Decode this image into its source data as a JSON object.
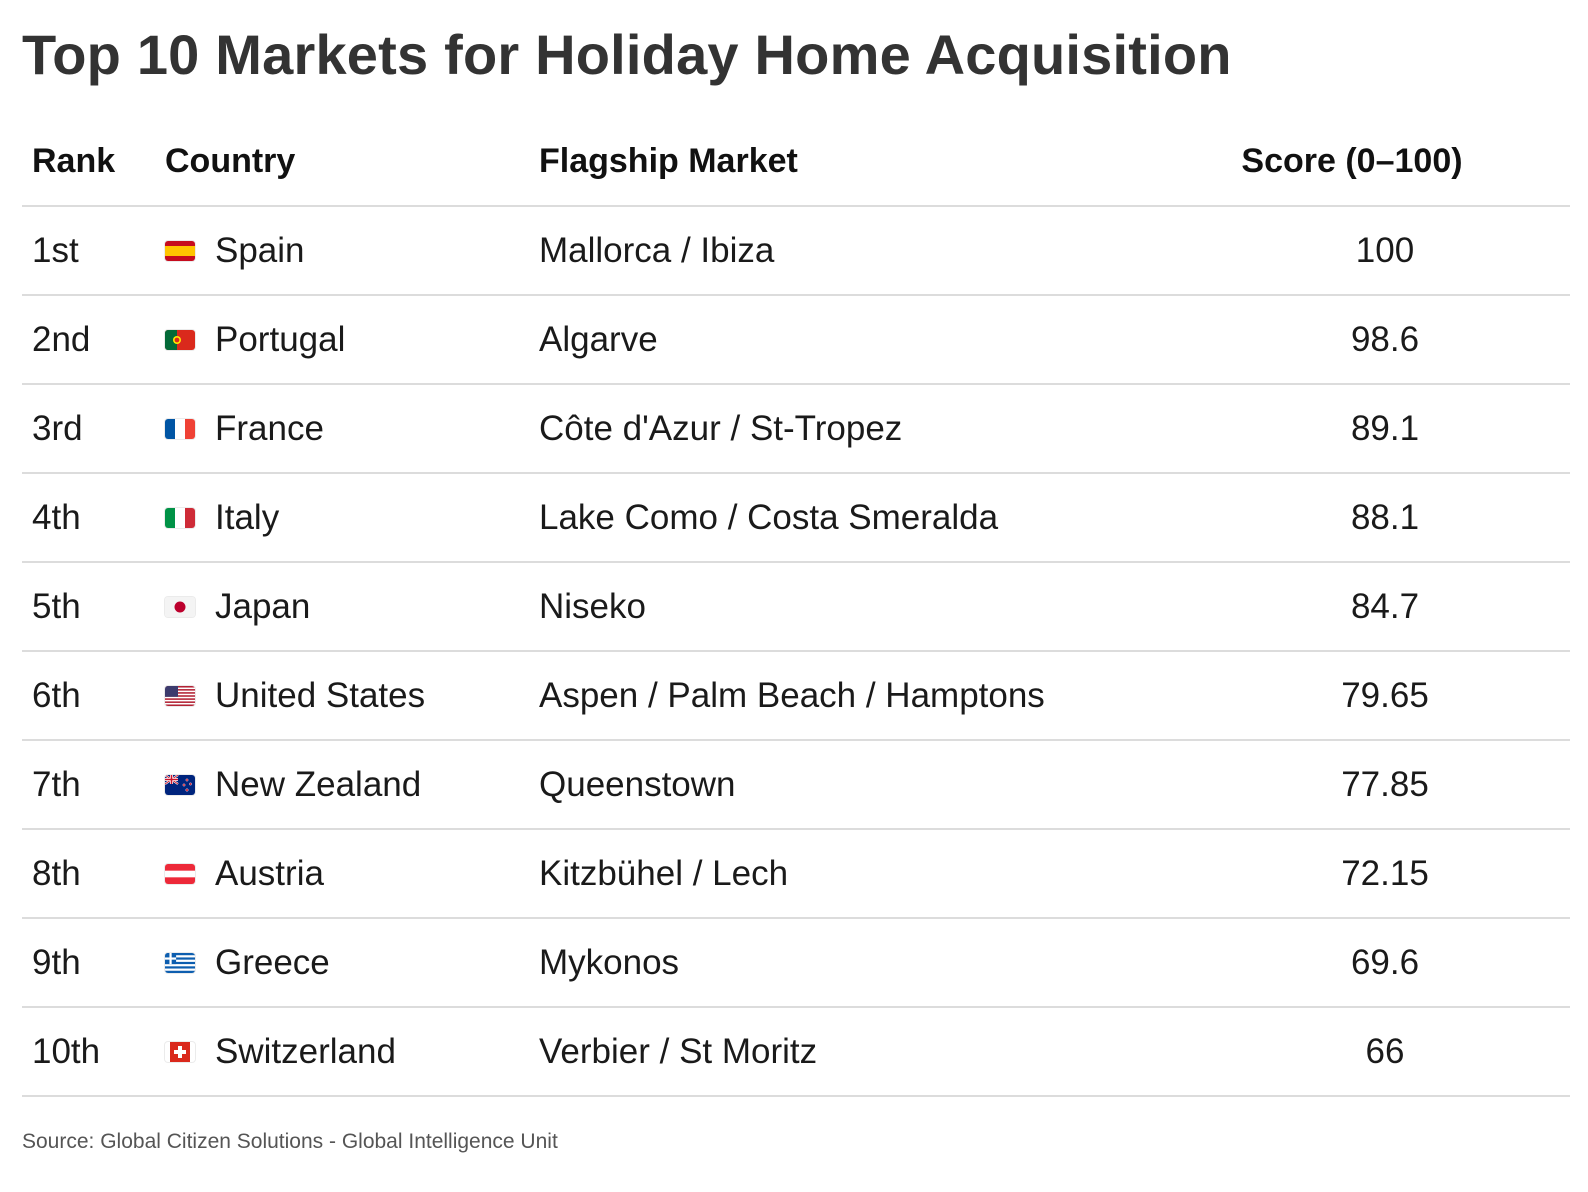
{
  "chart_data": {
    "type": "table",
    "title": "Top 10 Markets for Holiday Home Acquisition",
    "columns": [
      "Rank",
      "Country",
      "Flagship Market",
      "Score (0–100)"
    ],
    "rows": [
      {
        "rank": "1st",
        "country": "Spain",
        "flag": "spain-flag-icon",
        "market": "Mallorca / Ibiza",
        "score": "100"
      },
      {
        "rank": "2nd",
        "country": "Portugal",
        "flag": "portugal-flag-icon",
        "market": "Algarve",
        "score": "98.6"
      },
      {
        "rank": "3rd",
        "country": "France",
        "flag": "france-flag-icon",
        "market": "Côte d'Azur / St-Tropez",
        "score": "89.1"
      },
      {
        "rank": "4th",
        "country": "Italy",
        "flag": "italy-flag-icon",
        "market": "Lake Como / Costa Smeralda",
        "score": "88.1"
      },
      {
        "rank": "5th",
        "country": "Japan",
        "flag": "japan-flag-icon",
        "market": "Niseko",
        "score": "84.7"
      },
      {
        "rank": "6th",
        "country": "United States",
        "flag": "united-states-flag-icon",
        "market": "Aspen / Palm Beach / Hamptons",
        "score": "79.65"
      },
      {
        "rank": "7th",
        "country": "New Zealand",
        "flag": "new-zealand-flag-icon",
        "market": "Queenstown",
        "score": "77.85"
      },
      {
        "rank": "8th",
        "country": "Austria",
        "flag": "austria-flag-icon",
        "market": "Kitzbühel / Lech",
        "score": "72.15"
      },
      {
        "rank": "9th",
        "country": "Greece",
        "flag": "greece-flag-icon",
        "market": "Mykonos",
        "score": "69.6"
      },
      {
        "rank": "10th",
        "country": "Switzerland",
        "flag": "switzerland-flag-icon",
        "market": "Verbier / St Moritz",
        "score": "66"
      }
    ],
    "source": "Source: Global Citizen Solutions - Global Intelligence Unit"
  }
}
